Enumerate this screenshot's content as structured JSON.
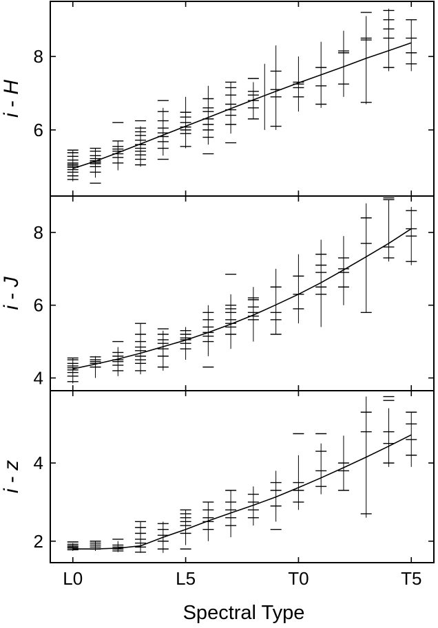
{
  "figure": {
    "xlabel": "Spectral Type"
  },
  "chart_data": [
    {
      "type": "scatter",
      "ylabel_main": "i",
      "ylabel_sep": " - ",
      "ylabel_color": "H",
      "x_tick_labels": [
        "L0",
        "L5",
        "T0",
        "T5"
      ],
      "x_tick_values": [
        0,
        5,
        10,
        15
      ],
      "xlim": [
        -1,
        16
      ],
      "ylim": [
        4.2,
        9.5
      ],
      "y_ticks": [
        6,
        8
      ],
      "fit": {
        "x": [
          0,
          1,
          2,
          3,
          4,
          5,
          6,
          7,
          8,
          9,
          10,
          11,
          12,
          13,
          14,
          15
        ],
        "y": [
          4.95,
          5.15,
          5.38,
          5.62,
          5.86,
          6.1,
          6.34,
          6.58,
          6.82,
          7.05,
          7.28,
          7.5,
          7.72,
          7.95,
          8.16,
          8.37
        ]
      },
      "ranges": [
        {
          "x": 0,
          "lo": 4.6,
          "hi": 5.45
        },
        {
          "x": 1,
          "lo": 4.7,
          "hi": 5.5
        },
        {
          "x": 2,
          "lo": 4.9,
          "hi": 5.7
        },
        {
          "x": 3,
          "lo": 5.0,
          "hi": 6.1
        },
        {
          "x": 4,
          "lo": 5.3,
          "hi": 6.6
        },
        {
          "x": 5,
          "lo": 5.5,
          "hi": 6.9
        },
        {
          "x": 6,
          "lo": 5.6,
          "hi": 7.2
        },
        {
          "x": 7,
          "lo": 5.9,
          "hi": 7.3
        },
        {
          "x": 8,
          "lo": 6.3,
          "hi": 7.3
        },
        {
          "x": 8.5,
          "lo": 6.0,
          "hi": 7.8
        },
        {
          "x": 9,
          "lo": 6.0,
          "hi": 8.3
        },
        {
          "x": 10,
          "lo": 6.5,
          "hi": 8.0
        },
        {
          "x": 11,
          "lo": 6.6,
          "hi": 8.4
        },
        {
          "x": 12,
          "lo": 6.9,
          "hi": 8.7
        },
        {
          "x": 13,
          "lo": 6.7,
          "hi": 9.1
        },
        {
          "x": 14,
          "lo": 7.6,
          "hi": 9.3
        },
        {
          "x": 15,
          "lo": 7.6,
          "hi": 9.0
        }
      ],
      "points": [
        {
          "x": 0,
          "y": [
            4.65,
            4.75,
            4.85,
            4.92,
            4.98,
            5.02,
            5.06,
            5.1,
            5.18,
            5.28,
            5.38,
            5.45
          ]
        },
        {
          "x": 1,
          "y": [
            4.55,
            4.85,
            5.0,
            5.08,
            5.12,
            5.16,
            5.22,
            5.3,
            5.42,
            5.5
          ]
        },
        {
          "x": 2,
          "y": [
            5.1,
            5.25,
            5.35,
            5.42,
            5.48,
            5.55,
            5.7,
            6.2
          ]
        },
        {
          "x": 3,
          "y": [
            5.05,
            5.2,
            5.32,
            5.42,
            5.5,
            5.6,
            5.72,
            5.85,
            5.95,
            6.05,
            6.25
          ]
        },
        {
          "x": 4,
          "y": [
            5.2,
            5.5,
            5.68,
            5.82,
            5.92,
            6.05,
            6.25,
            6.5,
            6.8
          ]
        },
        {
          "x": 5,
          "y": [
            5.55,
            5.9,
            6.0,
            6.08,
            6.2,
            6.35,
            6.48
          ]
        },
        {
          "x": 6,
          "y": [
            5.35,
            5.8,
            6.0,
            6.15,
            6.3,
            6.5,
            6.6,
            6.85
          ]
        },
        {
          "x": 7,
          "y": [
            5.65,
            6.15,
            6.4,
            6.55,
            6.7,
            6.95,
            7.15,
            7.3
          ]
        },
        {
          "x": 8,
          "y": [
            6.3,
            6.6,
            6.8,
            6.95,
            7.05,
            7.4
          ]
        },
        {
          "x": 9,
          "y": [
            6.1,
            6.9,
            7.1,
            7.6
          ]
        },
        {
          "x": 10,
          "y": [
            6.9,
            7.15,
            7.25,
            7.3
          ]
        },
        {
          "x": 11,
          "y": [
            6.7,
            7.2,
            7.7
          ]
        },
        {
          "x": 12,
          "y": [
            7.25,
            8.1,
            8.15
          ]
        },
        {
          "x": 13,
          "y": [
            6.75,
            8.45,
            8.5,
            9.2
          ]
        },
        {
          "x": 14,
          "y": [
            7.7,
            8.5,
            8.75,
            9.0,
            9.25
          ]
        },
        {
          "x": 15,
          "y": [
            7.8,
            8.1,
            8.5,
            9.0
          ]
        }
      ]
    },
    {
      "type": "scatter",
      "ylabel_main": "i",
      "ylabel_sep": " - ",
      "ylabel_color": "J",
      "x_tick_labels": [
        "L0",
        "L5",
        "T0",
        "T5"
      ],
      "x_tick_values": [
        0,
        5,
        10,
        15
      ],
      "xlim": [
        -1,
        16
      ],
      "ylim": [
        3.65,
        9.0
      ],
      "y_ticks": [
        4,
        6,
        8
      ],
      "fit": {
        "x": [
          0,
          1,
          2,
          3,
          4,
          5,
          6,
          7,
          8,
          9,
          10,
          11,
          12,
          13,
          14,
          15
        ],
        "y": [
          4.25,
          4.38,
          4.52,
          4.68,
          4.86,
          5.04,
          5.25,
          5.48,
          5.73,
          6.01,
          6.3,
          6.62,
          6.97,
          7.33,
          7.7,
          8.1
        ]
      },
      "ranges": [
        {
          "x": 0,
          "lo": 3.85,
          "hi": 4.55
        },
        {
          "x": 1,
          "lo": 4.0,
          "hi": 4.6
        },
        {
          "x": 2,
          "lo": 4.05,
          "hi": 4.85
        },
        {
          "x": 3,
          "lo": 4.1,
          "hi": 5.5
        },
        {
          "x": 4,
          "lo": 4.2,
          "hi": 5.3
        },
        {
          "x": 5,
          "lo": 4.5,
          "hi": 5.4
        },
        {
          "x": 6,
          "lo": 4.6,
          "hi": 6.0
        },
        {
          "x": 7,
          "lo": 4.8,
          "hi": 6.3
        },
        {
          "x": 8,
          "lo": 5.0,
          "hi": 6.5
        },
        {
          "x": 9,
          "lo": 5.2,
          "hi": 7.0
        },
        {
          "x": 10,
          "lo": 5.5,
          "hi": 7.4
        },
        {
          "x": 11,
          "lo": 5.4,
          "hi": 7.8
        },
        {
          "x": 12,
          "lo": 6.0,
          "hi": 7.9
        },
        {
          "x": 13,
          "lo": 5.8,
          "hi": 8.8
        },
        {
          "x": 14,
          "lo": 7.2,
          "hi": 8.9
        },
        {
          "x": 15,
          "lo": 7.1,
          "hi": 8.7
        }
      ],
      "points": [
        {
          "x": 0,
          "y": [
            3.9,
            4.05,
            4.15,
            4.22,
            4.28,
            4.33,
            4.4,
            4.5,
            4.55
          ]
        },
        {
          "x": 1,
          "y": [
            4.3,
            4.4,
            4.45,
            4.5,
            4.58
          ]
        },
        {
          "x": 2,
          "y": [
            4.2,
            4.35,
            4.45,
            4.5,
            4.6,
            4.7,
            5.0
          ]
        },
        {
          "x": 3,
          "y": [
            4.2,
            4.4,
            4.5,
            4.6,
            4.75,
            4.85,
            5.0,
            5.2,
            5.5
          ]
        },
        {
          "x": 4,
          "y": [
            4.3,
            4.6,
            4.8,
            4.95,
            5.05,
            5.2,
            5.35
          ]
        },
        {
          "x": 5,
          "y": [
            4.8,
            4.95,
            5.05,
            5.1,
            5.2,
            5.3
          ]
        },
        {
          "x": 6,
          "y": [
            4.3,
            5.0,
            5.15,
            5.25,
            5.4,
            5.6,
            5.8
          ]
        },
        {
          "x": 7,
          "y": [
            5.2,
            5.4,
            5.5,
            5.6,
            5.8,
            5.9,
            6.0,
            6.85
          ]
        },
        {
          "x": 8,
          "y": [
            5.6,
            5.7,
            5.8,
            5.95,
            6.15,
            6.2
          ]
        },
        {
          "x": 9,
          "y": [
            5.2,
            5.6,
            5.8,
            6.5
          ]
        },
        {
          "x": 10,
          "y": [
            5.9,
            6.3,
            6.8
          ]
        },
        {
          "x": 11,
          "y": [
            6.3,
            6.5,
            6.9,
            7.1,
            7.4
          ]
        },
        {
          "x": 12,
          "y": [
            6.5,
            6.9,
            7.0,
            7.3
          ]
        },
        {
          "x": 13,
          "y": [
            5.8,
            7.7,
            8.4
          ]
        },
        {
          "x": 14,
          "y": [
            7.3,
            7.6,
            8.9,
            8.95
          ]
        },
        {
          "x": 15,
          "y": [
            7.2,
            7.9,
            8.1,
            8.6
          ]
        }
      ]
    },
    {
      "type": "scatter",
      "ylabel_main": "i",
      "ylabel_sep": " - ",
      "ylabel_color": "z",
      "x_tick_labels": [
        "L0",
        "L5",
        "T0",
        "T5"
      ],
      "x_tick_values": [
        0,
        5,
        10,
        15
      ],
      "xlim": [
        -1,
        16
      ],
      "ylim": [
        1.45,
        5.85
      ],
      "y_ticks": [
        2,
        4
      ],
      "fit": {
        "x": [
          0,
          1,
          2,
          3,
          4,
          5,
          6,
          7,
          8,
          9,
          10,
          11,
          12,
          13,
          14,
          15
        ],
        "y": [
          1.8,
          1.8,
          1.82,
          1.88,
          2.1,
          2.3,
          2.52,
          2.72,
          2.92,
          3.13,
          3.37,
          3.62,
          3.88,
          4.15,
          4.43,
          4.72
        ]
      },
      "ranges": [
        {
          "x": 0,
          "lo": 1.75,
          "hi": 1.95
        },
        {
          "x": 1,
          "lo": 1.75,
          "hi": 2.0
        },
        {
          "x": 2,
          "lo": 1.72,
          "hi": 2.0
        },
        {
          "x": 3,
          "lo": 1.7,
          "hi": 2.5
        },
        {
          "x": 4,
          "lo": 1.7,
          "hi": 2.5
        },
        {
          "x": 5,
          "lo": 1.9,
          "hi": 2.8
        },
        {
          "x": 6,
          "lo": 2.0,
          "hi": 3.0
        },
        {
          "x": 7,
          "lo": 2.1,
          "hi": 3.3
        },
        {
          "x": 8,
          "lo": 2.4,
          "hi": 3.4
        },
        {
          "x": 9,
          "lo": 2.5,
          "hi": 3.8
        },
        {
          "x": 10,
          "lo": 2.8,
          "hi": 4.2
        },
        {
          "x": 11,
          "lo": 3.2,
          "hi": 4.5
        },
        {
          "x": 12,
          "lo": 3.3,
          "hi": 4.7
        },
        {
          "x": 13,
          "lo": 2.6,
          "hi": 5.7
        },
        {
          "x": 14,
          "lo": 3.9,
          "hi": 5.4
        },
        {
          "x": 15,
          "lo": 3.9,
          "hi": 5.3
        }
      ],
      "points": [
        {
          "x": 0,
          "y": [
            1.78,
            1.82,
            1.85,
            1.88,
            1.92,
            1.98
          ]
        },
        {
          "x": 1,
          "y": [
            1.8,
            1.85,
            1.9,
            1.95,
            2.0
          ]
        },
        {
          "x": 2,
          "y": [
            1.75,
            1.8,
            1.85,
            1.9,
            2.05
          ]
        },
        {
          "x": 3,
          "y": [
            1.72,
            1.85,
            1.95,
            2.05,
            2.2,
            2.35,
            2.5
          ]
        },
        {
          "x": 4,
          "y": [
            1.8,
            2.0,
            2.15,
            2.3,
            2.45
          ]
        },
        {
          "x": 5,
          "y": [
            1.8,
            2.2,
            2.4,
            2.5,
            2.6,
            2.7,
            2.8
          ]
        },
        {
          "x": 6,
          "y": [
            2.3,
            2.5,
            2.6,
            2.8,
            3.0
          ]
        },
        {
          "x": 7,
          "y": [
            2.4,
            2.6,
            2.8,
            3.0,
            3.3
          ]
        },
        {
          "x": 8,
          "y": [
            2.6,
            2.8,
            3.0,
            3.2
          ]
        },
        {
          "x": 9,
          "y": [
            2.3,
            2.9,
            3.3,
            3.5
          ]
        },
        {
          "x": 10,
          "y": [
            3.0,
            3.3,
            3.5,
            4.75
          ]
        },
        {
          "x": 11,
          "y": [
            3.4,
            3.8,
            4.3,
            4.75
          ]
        },
        {
          "x": 12,
          "y": [
            3.3,
            3.8,
            4.0
          ]
        },
        {
          "x": 13,
          "y": [
            2.7,
            4.8,
            5.3
          ]
        },
        {
          "x": 14,
          "y": [
            4.0,
            4.5,
            4.8,
            5.6,
            5.7
          ]
        },
        {
          "x": 15,
          "y": [
            4.2,
            4.6,
            5.0,
            5.3
          ]
        }
      ]
    }
  ]
}
